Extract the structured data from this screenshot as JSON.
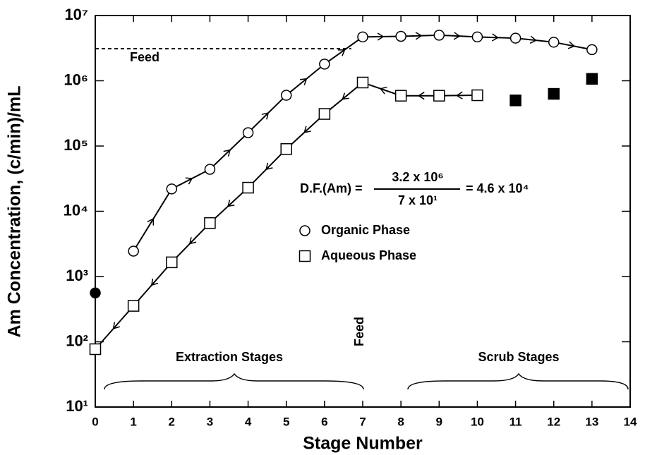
{
  "chart_data": {
    "type": "line",
    "x_label": "Stage Number",
    "y_label": "Am Concentration, (c/min)/mL",
    "log_y": true,
    "xlim": [
      0,
      14
    ],
    "xticks": [
      0,
      1,
      2,
      3,
      4,
      5,
      6,
      7,
      8,
      9,
      10,
      11,
      12,
      13,
      14
    ],
    "ylim": [
      10,
      10000000
    ],
    "yticks": [
      {
        "value": 10,
        "label": "10¹"
      },
      {
        "value": 100,
        "label": "10²"
      },
      {
        "value": 1000,
        "label": "10³"
      },
      {
        "value": 10000,
        "label": "10⁴"
      },
      {
        "value": 100000,
        "label": "10⁵"
      },
      {
        "value": 1000000,
        "label": "10⁶"
      },
      {
        "value": 10000000,
        "label": "10⁷"
      }
    ],
    "series": [
      {
        "name": "Organic Phase",
        "marker": "circle",
        "filled": false,
        "connected": true,
        "arrow": "right",
        "color": "#000000",
        "x": [
          1,
          2,
          3,
          4,
          5,
          6,
          7,
          8,
          9,
          10,
          11,
          12,
          13
        ],
        "values": [
          2450,
          22000,
          44000,
          160000,
          600000,
          1800000,
          4700000,
          4800000,
          5000000,
          4700000,
          4500000,
          3900000,
          3000000
        ]
      },
      {
        "name": "Aqueous Phase",
        "marker": "square",
        "filled": false,
        "connected": true,
        "arrow": "left",
        "color": "#000000",
        "x": [
          0,
          1,
          2,
          3,
          4,
          5,
          6,
          7,
          8,
          9,
          10
        ],
        "values": [
          77,
          355,
          1650,
          6600,
          23000,
          90000,
          310000,
          940000,
          590000,
          590000,
          600000
        ]
      },
      {
        "marker": "square",
        "filled": true,
        "connected": false,
        "color": "#000000",
        "x": [
          11,
          12,
          13
        ],
        "values": [
          500000,
          630000,
          1070000
        ]
      },
      {
        "marker": "circle",
        "filled": true,
        "connected": false,
        "color": "#000000",
        "x": [
          0
        ],
        "values": [
          560
        ]
      }
    ],
    "feed_line": {
      "label": "Feed",
      "y": 3100000,
      "x": [
        0,
        6.7
      ]
    },
    "annotations": {
      "feed_stage": "Feed",
      "extraction": "Extraction Stages",
      "scrub": "Scrub Stages",
      "df_left": "D.F.(Am) =",
      "df_numerator": "3.2 x 10⁶",
      "df_denominator": "7 x 10¹",
      "df_result": "= 4.6 x 10⁴"
    }
  }
}
